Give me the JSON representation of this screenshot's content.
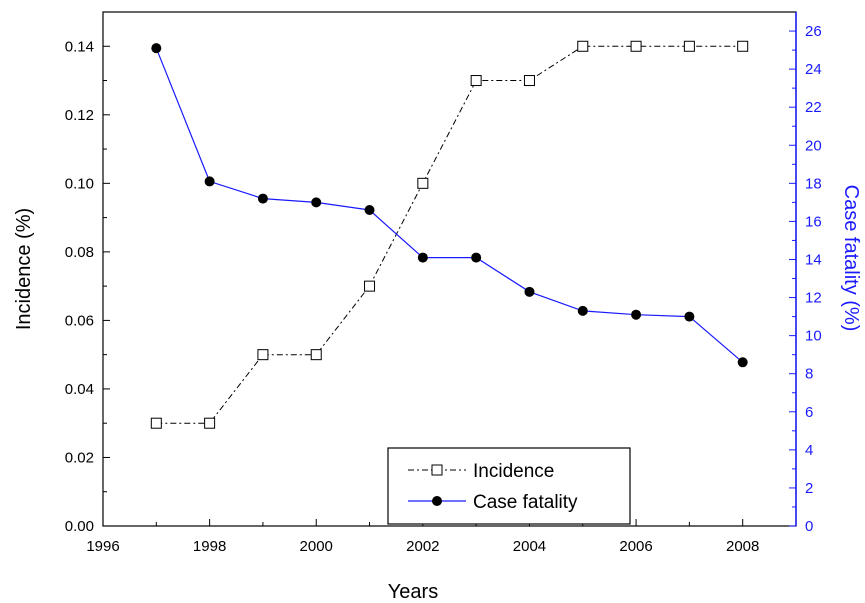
{
  "chart_data": {
    "type": "line",
    "xlabel": "Years",
    "ylabel_left": "Incidence (%)",
    "ylabel_right": "Case fatality (%)",
    "xlim": [
      1996,
      2009
    ],
    "x_ticks": [
      1996,
      1998,
      2000,
      2002,
      2004,
      2006,
      2008
    ],
    "ylim_left": [
      0,
      0.15
    ],
    "y_ticks_left": [
      "0.00",
      "0.02",
      "0.04",
      "0.06",
      "0.08",
      "0.10",
      "0.12",
      "0.14"
    ],
    "ylim_right": [
      0,
      27
    ],
    "y_ticks_right": [
      "0",
      "2",
      "4",
      "6",
      "8",
      "10",
      "12",
      "14",
      "16",
      "18",
      "20",
      "22",
      "24",
      "26"
    ],
    "x": [
      1997,
      1998,
      1999,
      2000,
      2001,
      2002,
      2003,
      2004,
      2005,
      2006,
      2007,
      2008
    ],
    "series": [
      {
        "name": "Incidence",
        "axis": "left",
        "color": "#000000",
        "line_style": "dash-dot",
        "marker": "open-square",
        "values": [
          0.03,
          0.03,
          0.05,
          0.05,
          0.07,
          0.1,
          0.13,
          0.13,
          0.14,
          0.14,
          0.14,
          0.14
        ]
      },
      {
        "name": "Case fatality",
        "axis": "right",
        "color": "#1a1aff",
        "marker_color": "#000000",
        "line_style": "solid",
        "marker": "filled-circle",
        "values": [
          25.1,
          18.1,
          17.2,
          17.0,
          16.6,
          14.1,
          14.1,
          12.3,
          11.3,
          11.1,
          11.0,
          8.6
        ]
      }
    ],
    "legend": {
      "position": "bottom-center"
    },
    "grid": false
  }
}
